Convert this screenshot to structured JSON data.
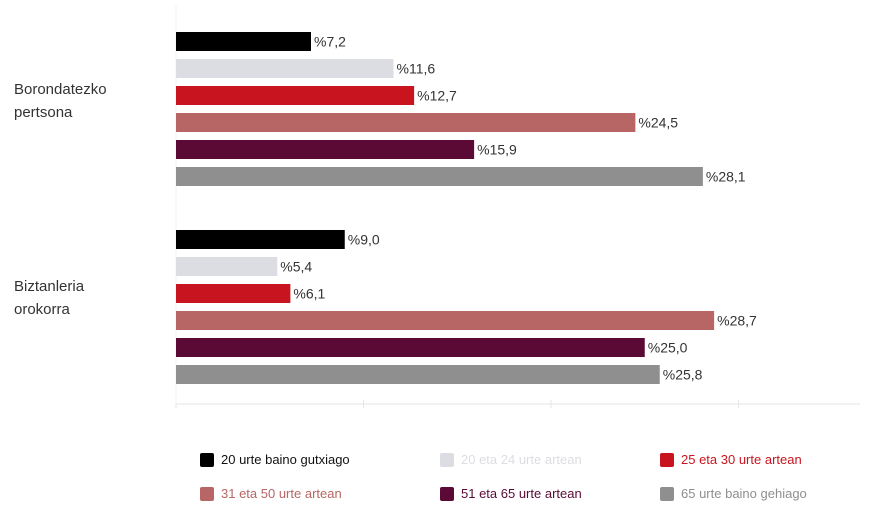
{
  "chart_data": {
    "type": "bar",
    "orientation": "horizontal",
    "categories": [
      "Borondatezko pertsona",
      "Biztanleria orokorra"
    ],
    "category_lines": [
      [
        "Borondatezko",
        "pertsona"
      ],
      [
        "Biztanleria",
        "orokorra"
      ]
    ],
    "series": [
      {
        "name": "20 urte baino gutxiago",
        "color": "#000000",
        "values": [
          7.2,
          9.0
        ],
        "labels": [
          "%7,2",
          "%9,0"
        ]
      },
      {
        "name": "20 eta 24 urte artean",
        "color": "#dcdde2",
        "values": [
          11.6,
          5.4
        ],
        "labels": [
          "%11,6",
          "%5,4"
        ]
      },
      {
        "name": "25 eta 30 urte artean",
        "color": "#c8141e",
        "values": [
          12.7,
          6.1
        ],
        "labels": [
          "%12,7",
          "%6,1"
        ]
      },
      {
        "name": "31 eta 50 urte artean",
        "color": "#b86565",
        "values": [
          24.5,
          28.7
        ],
        "labels": [
          "%24,5",
          "%28,7"
        ]
      },
      {
        "name": "51 eta 65 urte artean",
        "color": "#5b0a35",
        "values": [
          15.9,
          25.0
        ],
        "labels": [
          "%15,9",
          "%25,0"
        ]
      },
      {
        "name": "65 urte baino gehiago",
        "color": "#8f8f8f",
        "values": [
          28.1,
          25.8
        ],
        "labels": [
          "%28,1",
          "%25,8"
        ]
      }
    ],
    "xlim": [
      0,
      35
    ],
    "legend_position": "bottom",
    "grid": false
  }
}
